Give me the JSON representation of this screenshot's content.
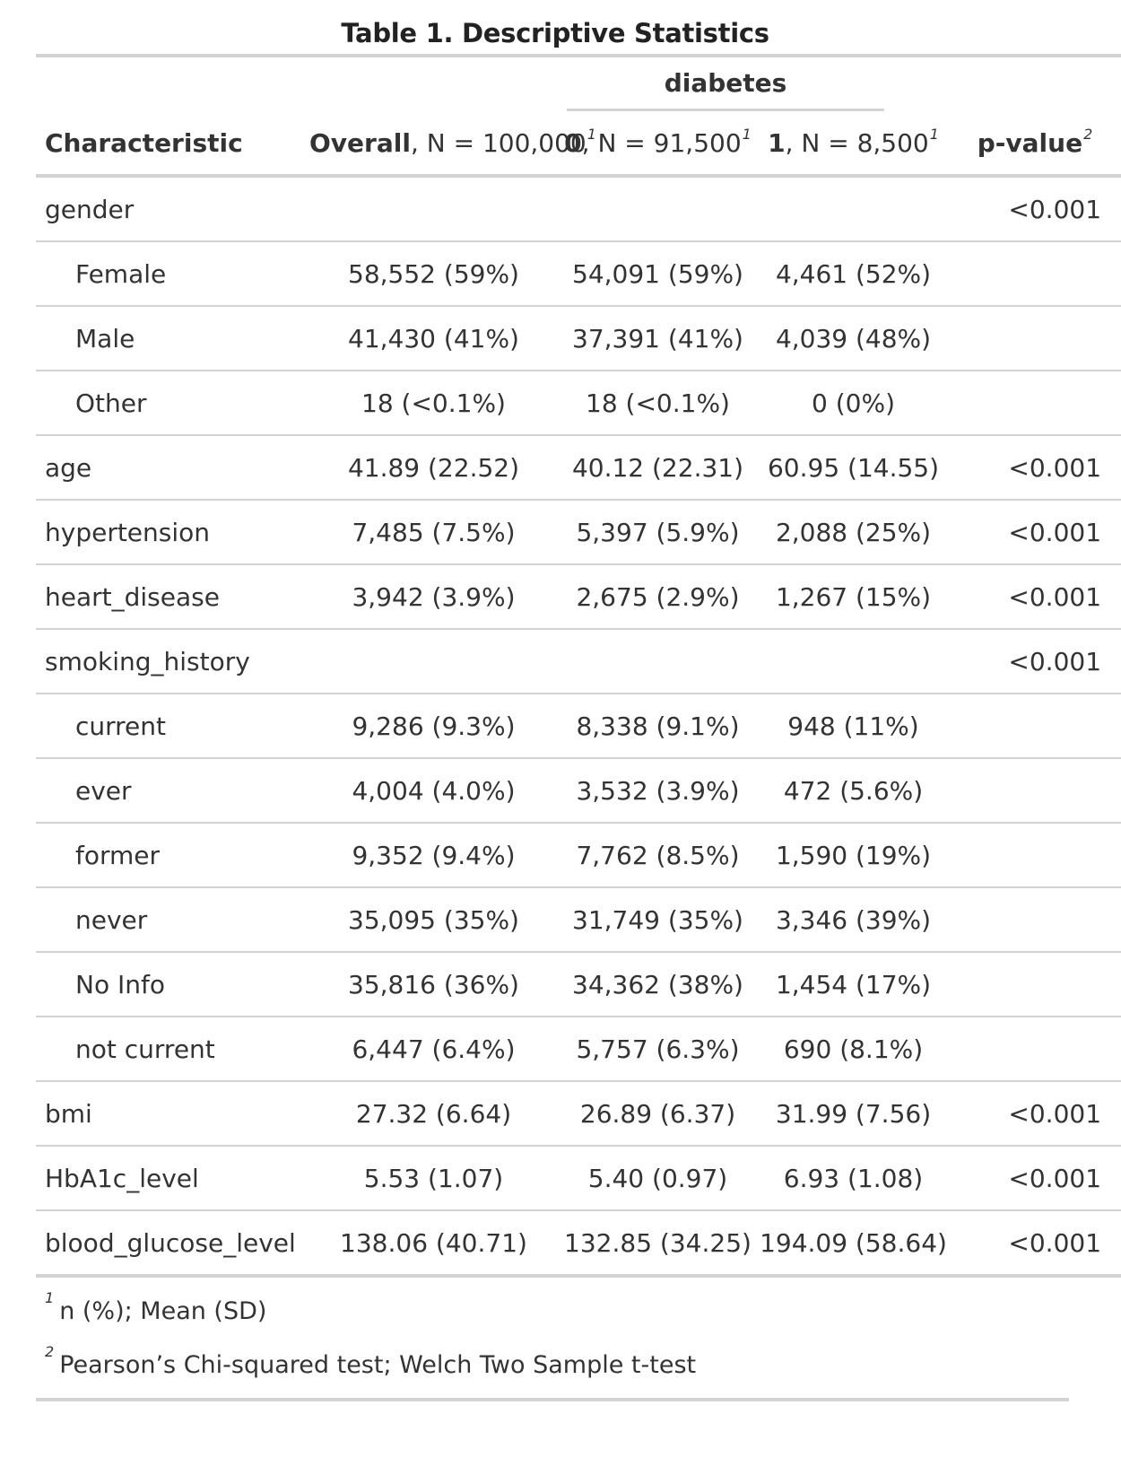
{
  "title": "Table 1. Descriptive Statistics",
  "spanner": "diabetes",
  "columns": {
    "characteristic": "Characteristic",
    "overall_bold": "Overall",
    "overall_rest": ", N = 100,000",
    "grp0_bold": "0",
    "grp0_rest": ", N = 91,500",
    "grp1_bold": "1",
    "grp1_rest": ", N = 8,500",
    "pvalue": "p-value",
    "fn_mark_1": "1",
    "fn_mark_2": "2"
  },
  "rows": [
    {
      "label": "gender",
      "indent": false,
      "overall": "",
      "g0": "",
      "g1": "",
      "p": "<0.001"
    },
    {
      "label": "Female",
      "indent": true,
      "overall": "58,552 (59%)",
      "g0": "54,091 (59%)",
      "g1": "4,461 (52%)",
      "p": ""
    },
    {
      "label": "Male",
      "indent": true,
      "overall": "41,430 (41%)",
      "g0": "37,391 (41%)",
      "g1": "4,039 (48%)",
      "p": ""
    },
    {
      "label": "Other",
      "indent": true,
      "overall": "18 (<0.1%)",
      "g0": "18 (<0.1%)",
      "g1": "0 (0%)",
      "p": ""
    },
    {
      "label": "age",
      "indent": false,
      "overall": "41.89 (22.52)",
      "g0": "40.12 (22.31)",
      "g1": "60.95 (14.55)",
      "p": "<0.001"
    },
    {
      "label": "hypertension",
      "indent": false,
      "overall": "7,485 (7.5%)",
      "g0": "5,397 (5.9%)",
      "g1": "2,088 (25%)",
      "p": "<0.001"
    },
    {
      "label": "heart_disease",
      "indent": false,
      "overall": "3,942 (3.9%)",
      "g0": "2,675 (2.9%)",
      "g1": "1,267 (15%)",
      "p": "<0.001"
    },
    {
      "label": "smoking_history",
      "indent": false,
      "overall": "",
      "g0": "",
      "g1": "",
      "p": "<0.001"
    },
    {
      "label": "current",
      "indent": true,
      "overall": "9,286 (9.3%)",
      "g0": "8,338 (9.1%)",
      "g1": "948 (11%)",
      "p": ""
    },
    {
      "label": "ever",
      "indent": true,
      "overall": "4,004 (4.0%)",
      "g0": "3,532 (3.9%)",
      "g1": "472 (5.6%)",
      "p": ""
    },
    {
      "label": "former",
      "indent": true,
      "overall": "9,352 (9.4%)",
      "g0": "7,762 (8.5%)",
      "g1": "1,590 (19%)",
      "p": ""
    },
    {
      "label": "never",
      "indent": true,
      "overall": "35,095 (35%)",
      "g0": "31,749 (35%)",
      "g1": "3,346 (39%)",
      "p": ""
    },
    {
      "label": "No Info",
      "indent": true,
      "overall": "35,816 (36%)",
      "g0": "34,362 (38%)",
      "g1": "1,454 (17%)",
      "p": ""
    },
    {
      "label": "not current",
      "indent": true,
      "overall": "6,447 (6.4%)",
      "g0": "5,757 (6.3%)",
      "g1": "690 (8.1%)",
      "p": ""
    },
    {
      "label": "bmi",
      "indent": false,
      "overall": "27.32 (6.64)",
      "g0": "26.89 (6.37)",
      "g1": "31.99 (7.56)",
      "p": "<0.001"
    },
    {
      "label": "HbA1c_level",
      "indent": false,
      "overall": "5.53 (1.07)",
      "g0": "5.40 (0.97)",
      "g1": "6.93 (1.08)",
      "p": "<0.001"
    },
    {
      "label": "blood_glucose_level",
      "indent": false,
      "overall": "138.06 (40.71)",
      "g0": "132.85 (34.25)",
      "g1": "194.09 (58.64)",
      "p": "<0.001"
    }
  ],
  "footnotes": [
    {
      "mark": "1",
      "text": "n (%); Mean (SD)"
    },
    {
      "mark": "2",
      "text": "Pearson’s Chi-squared test; Welch Two Sample t-test"
    }
  ]
}
